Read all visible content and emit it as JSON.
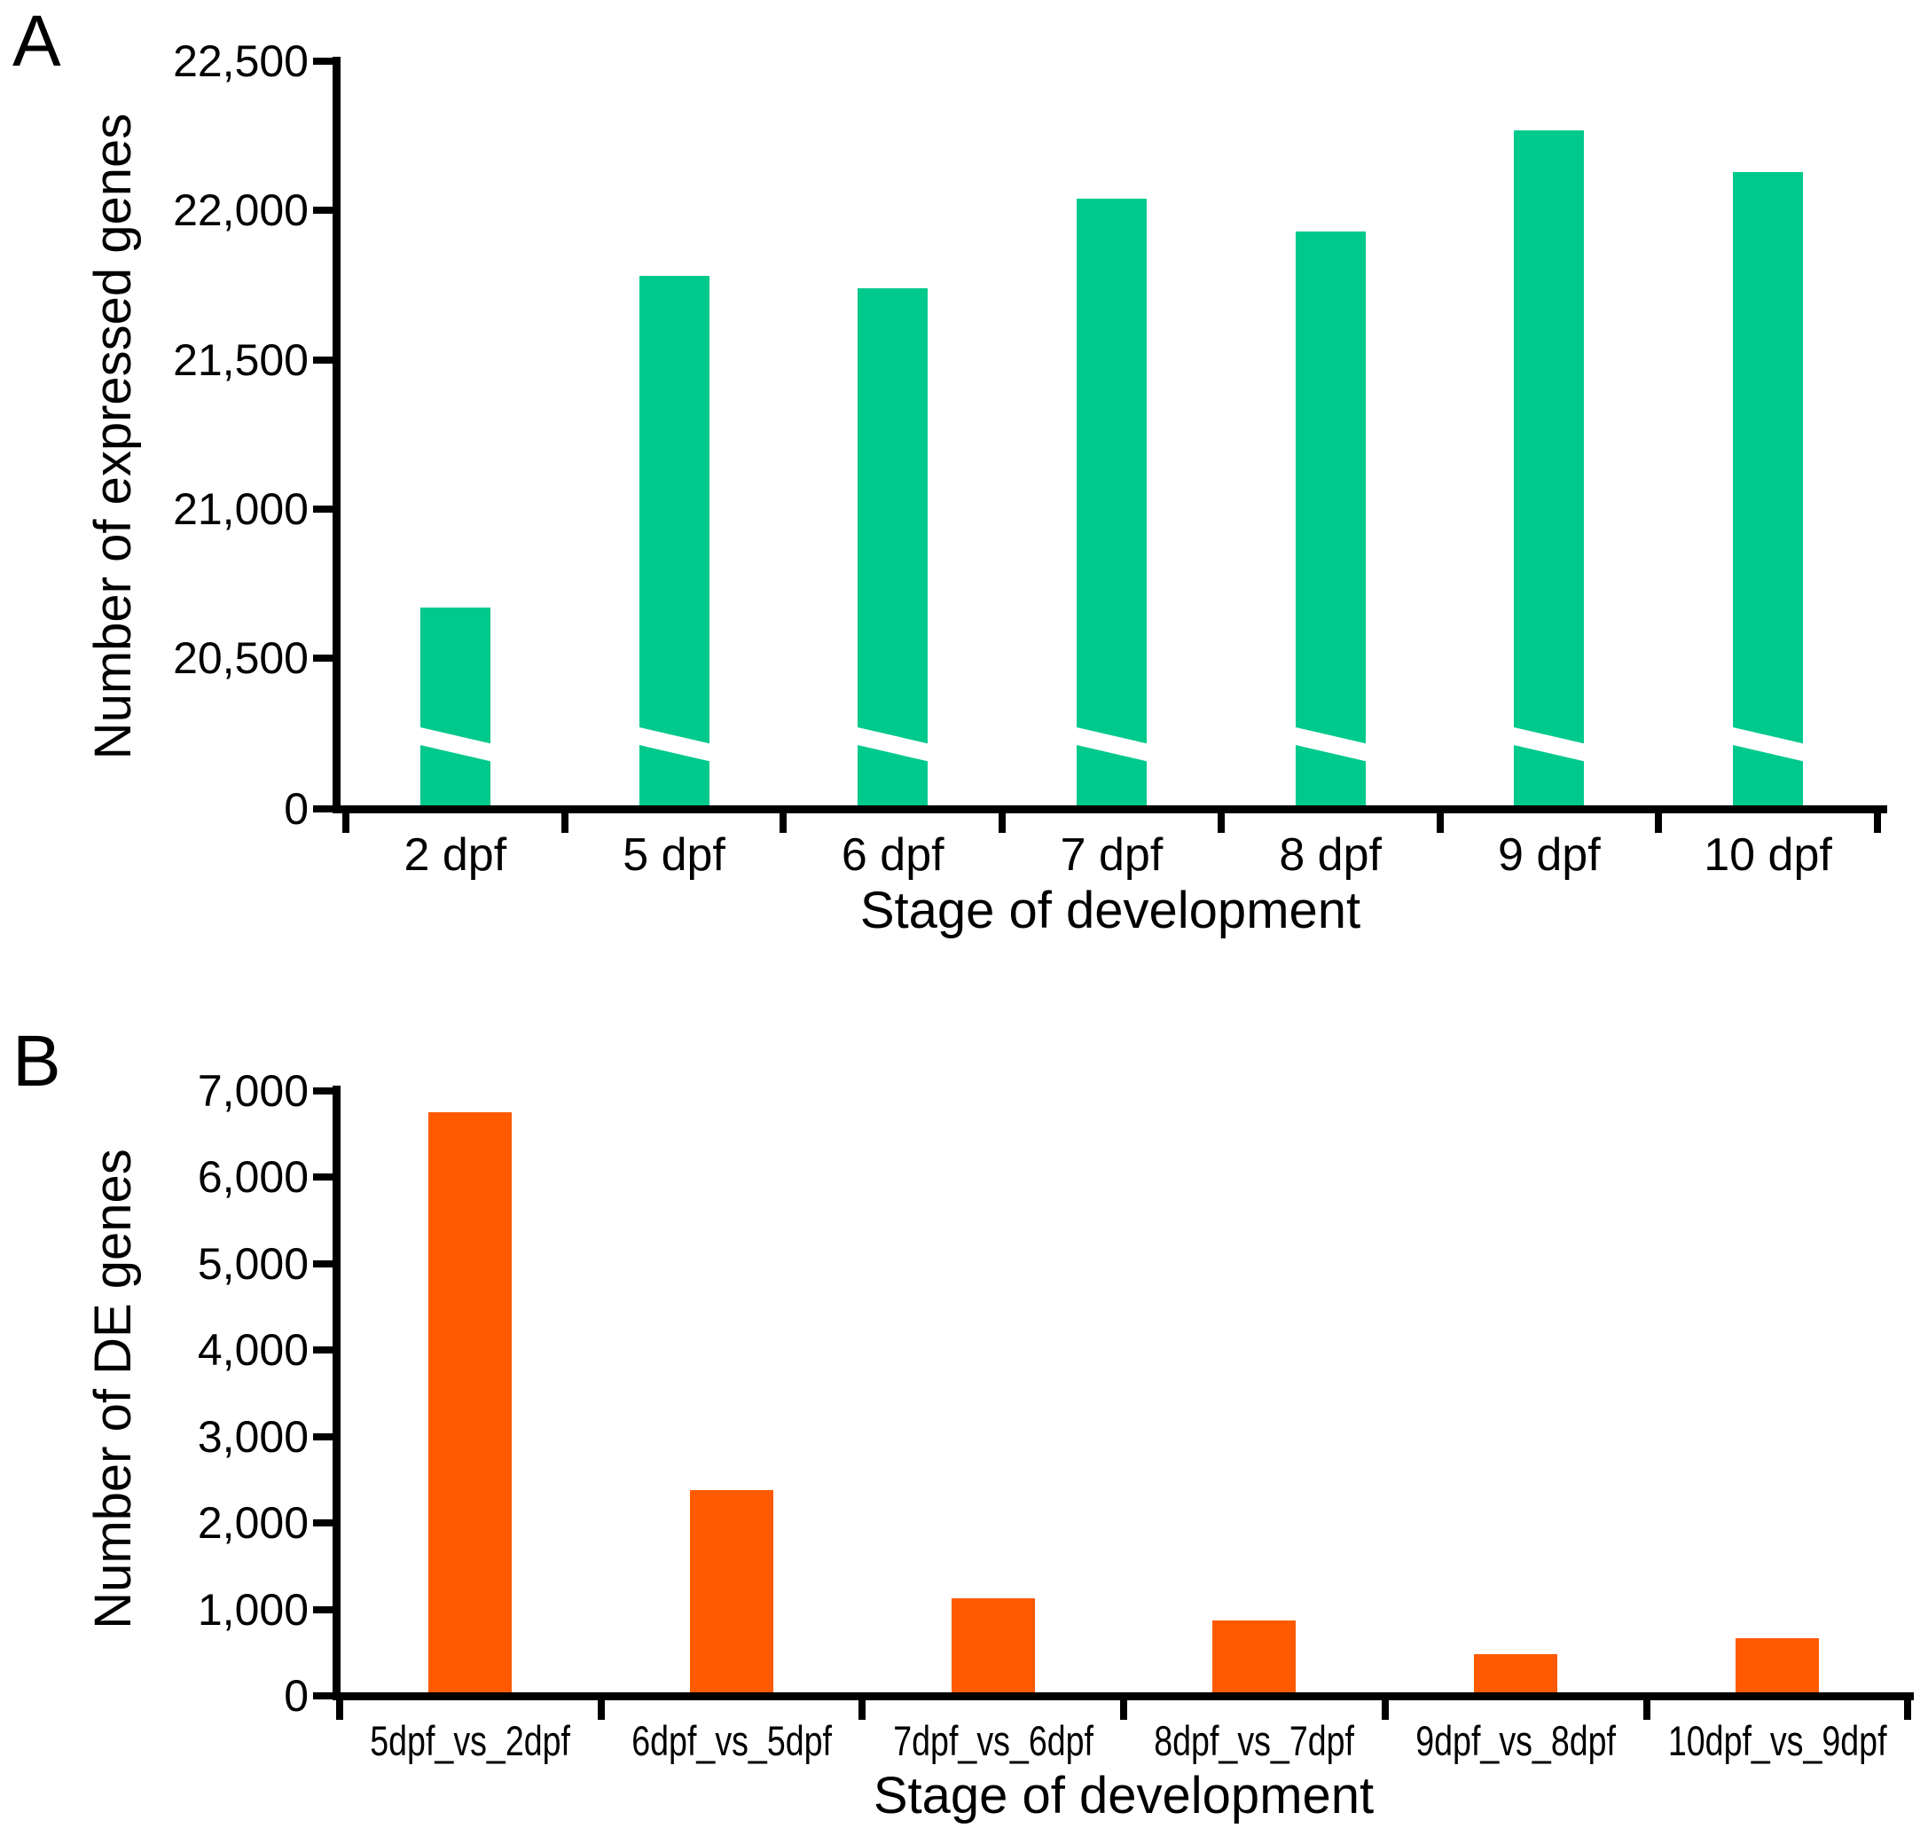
{
  "figure_title": "",
  "panels": {
    "a_letter": "A",
    "b_letter": "B"
  },
  "chart_data": [
    {
      "panel_letter": "A",
      "type": "bar",
      "title": "",
      "xlabel": "Stage of development",
      "ylabel": "Number of expressed genes",
      "categories": [
        "2 dpf",
        "5 dpf",
        "6 dpf",
        "7 dpf",
        "8 dpf",
        "9 dpf",
        "10 dpf"
      ],
      "values": [
        20670,
        21780,
        21740,
        22040,
        21930,
        22270,
        22130
      ],
      "bar_color": "#00C98C",
      "axis_color": "#000000",
      "axis_break": true,
      "legend": "none",
      "grid": false,
      "y_ticks": [
        {
          "label": "22,500",
          "value": 22500
        },
        {
          "label": "22,000",
          "value": 22000
        },
        {
          "label": "21,500",
          "value": 21500
        },
        {
          "label": "21,000",
          "value": 21000
        },
        {
          "label": "20,500",
          "value": 20500
        },
        {
          "label": "0",
          "value": 0
        }
      ],
      "ylim_note": "broken axis: 0, then 20,500 to 22,500"
    },
    {
      "panel_letter": "B",
      "type": "bar",
      "title": "",
      "xlabel": "Stage of development",
      "ylabel": "Number of DE genes",
      "categories": [
        "5dpf_vs_2dpf",
        "6dpf_vs_5dpf",
        "7dpf_vs_6dpf",
        "8dpf_vs_7dpf",
        "9dpf_vs_8dpf",
        "10dpf_vs_9dpf"
      ],
      "values": [
        6750,
        2380,
        1130,
        870,
        480,
        670
      ],
      "bar_color": "#FF5A00",
      "axis_color": "#000000",
      "axis_break": false,
      "legend": "none",
      "grid": false,
      "y_ticks": [
        {
          "label": "7,000",
          "value": 7000
        },
        {
          "label": "6,000",
          "value": 6000
        },
        {
          "label": "5,000",
          "value": 5000
        },
        {
          "label": "4,000",
          "value": 4000
        },
        {
          "label": "3,000",
          "value": 3000
        },
        {
          "label": "2,000",
          "value": 2000
        },
        {
          "label": "1,000",
          "value": 1000
        },
        {
          "label": "0",
          "value": 0
        }
      ],
      "ylim": [
        0,
        7000
      ]
    }
  ]
}
